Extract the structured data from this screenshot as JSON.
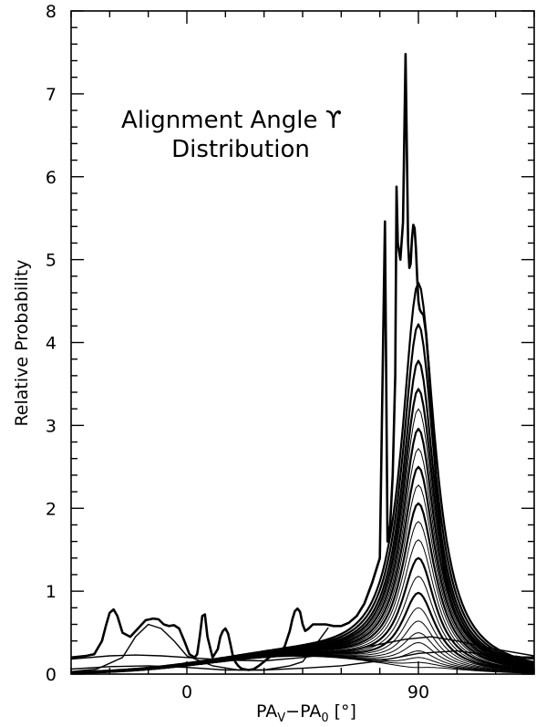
{
  "chart_data": {
    "type": "line",
    "title": "Alignment Angle ϒ",
    "subtitle": "Distribution",
    "xlabel": "PAᵥ−PA₀ [°]",
    "xlabel_parts": {
      "a": "PA",
      "a_sub": "V",
      "dash": "−",
      "b": "PA",
      "b_sub": "0",
      "unit": " [°]"
    },
    "ylabel": "Relative Probability",
    "xlim": [
      -45,
      135
    ],
    "ylim": [
      0,
      8
    ],
    "x_ticks": [
      0,
      90
    ],
    "y_ticks": [
      0,
      1,
      2,
      3,
      4,
      5,
      6,
      7,
      8
    ],
    "grid": false,
    "legend": "none",
    "line_color": "#000000",
    "main_peak": {
      "center": 90,
      "heights": [
        0.08,
        0.14,
        0.2,
        0.28,
        0.38,
        0.5,
        0.64,
        0.8,
        0.98,
        1.18,
        1.4,
        1.62,
        1.84,
        2.06,
        2.28,
        2.5,
        2.72,
        2.96,
        3.2,
        3.44,
        3.78,
        4.22,
        4.72
      ],
      "thick_heights": [
        0.98,
        1.4,
        2.06,
        2.5,
        2.96,
        3.44,
        3.78,
        4.22,
        4.72
      ],
      "width_deg": 8.5
    },
    "upper_envelope": {
      "x": [
        -45,
        -42,
        -39,
        -36,
        -33,
        -31.5,
        -30,
        -28.5,
        -27,
        -25,
        -22,
        -19,
        -16,
        -13,
        -11,
        -9,
        -7,
        -5,
        -3,
        -1,
        1,
        3,
        4,
        5,
        6,
        7,
        8,
        10,
        12,
        13,
        14,
        15,
        16,
        17,
        18,
        19,
        20,
        21,
        22,
        24,
        26,
        28,
        30,
        32,
        34,
        36,
        38,
        40,
        41,
        42,
        43,
        44,
        45,
        46,
        47,
        48,
        49,
        51,
        54,
        57,
        60,
        63,
        66,
        69,
        72,
        75,
        77,
        78,
        79,
        80,
        81,
        81.5,
        82,
        82.5,
        83,
        84,
        85,
        86,
        86.5,
        87,
        87.5,
        88,
        88.5,
        89,
        89.5,
        90,
        90.5,
        91,
        91.5,
        92,
        93,
        94,
        95,
        96,
        97,
        98,
        99,
        100,
        102,
        104,
        106,
        108,
        110,
        112,
        114,
        116,
        118,
        120,
        122,
        124,
        126,
        128,
        130,
        132,
        135
      ],
      "y": [
        0.2,
        0.21,
        0.22,
        0.24,
        0.4,
        0.58,
        0.74,
        0.78,
        0.7,
        0.5,
        0.45,
        0.55,
        0.65,
        0.67,
        0.66,
        0.6,
        0.58,
        0.59,
        0.55,
        0.4,
        0.24,
        0.2,
        0.24,
        0.45,
        0.7,
        0.72,
        0.45,
        0.2,
        0.3,
        0.45,
        0.52,
        0.55,
        0.49,
        0.35,
        0.2,
        0.14,
        0.1,
        0.07,
        0.06,
        0.05,
        0.06,
        0.1,
        0.15,
        0.2,
        0.24,
        0.26,
        0.33,
        0.52,
        0.66,
        0.76,
        0.79,
        0.75,
        0.6,
        0.52,
        0.54,
        0.57,
        0.6,
        0.6,
        0.6,
        0.58,
        0.58,
        0.62,
        0.7,
        0.85,
        1.1,
        1.4,
        5.46,
        1.6,
        1.8,
        2.4,
        3.6,
        5.88,
        5.2,
        5.1,
        5.0,
        5.45,
        7.48,
        5.2,
        4.9,
        4.95,
        5.25,
        5.42,
        5.38,
        5.15,
        4.8,
        4.5,
        4.4,
        4.37,
        4.35,
        4.33,
        4.1,
        3.7,
        3.25,
        2.75,
        2.3,
        1.9,
        1.55,
        1.25,
        0.95,
        0.75,
        0.62,
        0.52,
        0.45,
        0.39,
        0.34,
        0.3,
        0.27,
        0.25,
        0.23,
        0.22,
        0.21,
        0.21,
        0.2,
        0.2,
        0.2
      ]
    },
    "lower_curves": [
      {
        "x": [
          -45,
          -30,
          -15,
          0,
          15,
          30,
          45,
          60,
          75,
          90,
          105,
          120,
          135
        ],
        "y": [
          0.06,
          0.09,
          0.1,
          0.08,
          0.05,
          0.05,
          0.07,
          0.1,
          0.16,
          0.25,
          0.28,
          0.22,
          0.18
        ]
      },
      {
        "x": [
          -45,
          -30,
          -20,
          -10,
          0,
          15,
          30,
          45,
          60,
          75,
          85,
          95,
          105,
          120,
          135
        ],
        "y": [
          0.18,
          0.22,
          0.23,
          0.22,
          0.2,
          0.17,
          0.16,
          0.2,
          0.26,
          0.36,
          0.42,
          0.45,
          0.4,
          0.3,
          0.22
        ]
      },
      {
        "x": [
          -45,
          -35,
          -25,
          -20,
          -15,
          -10,
          -5,
          0,
          10,
          20,
          30,
          40,
          45,
          50,
          55
        ],
        "y": [
          0.03,
          0.06,
          0.2,
          0.45,
          0.6,
          0.55,
          0.4,
          0.22,
          0.1,
          0.05,
          0.05,
          0.1,
          0.15,
          0.35,
          0.56
        ]
      }
    ]
  }
}
